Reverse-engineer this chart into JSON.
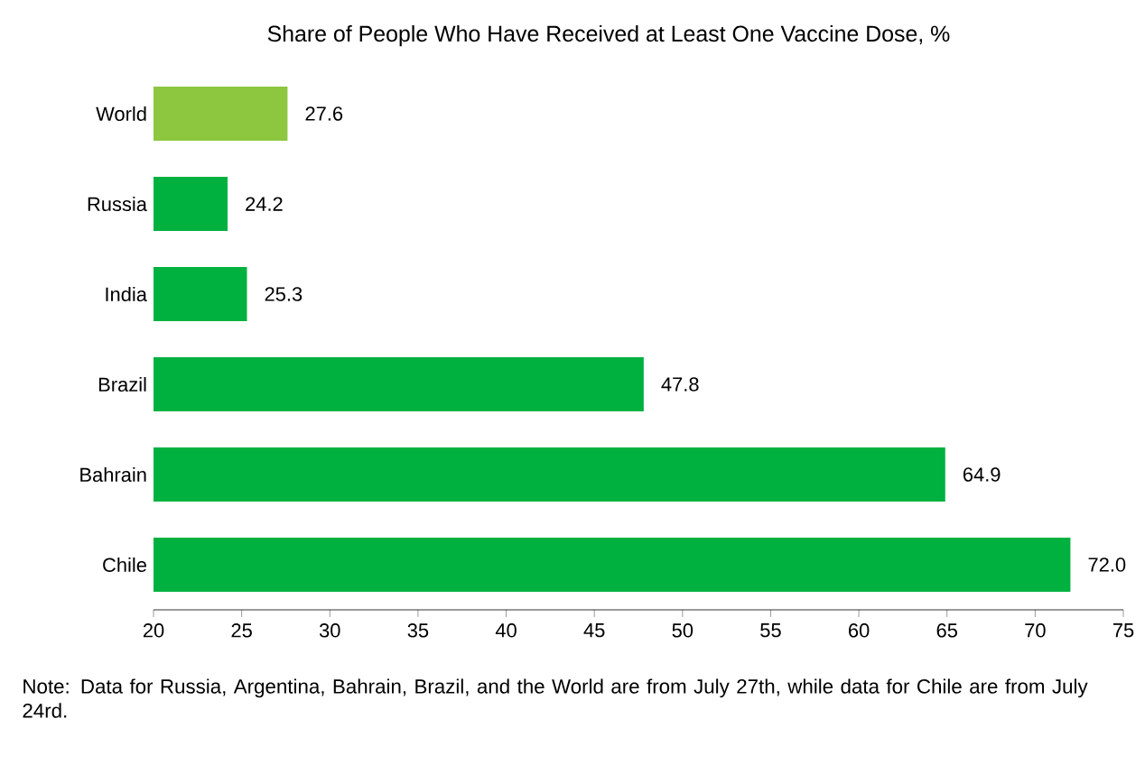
{
  "chart_data": {
    "type": "bar",
    "orientation": "horizontal",
    "title": "Share of People Who Have Received at Least One Vaccine Dose, %",
    "categories": [
      "World",
      "Russia",
      "India",
      "Brazil",
      "Bahrain",
      "Chile"
    ],
    "values": [
      27.6,
      24.2,
      25.3,
      47.8,
      64.9,
      72.0
    ],
    "colors": [
      "#8dc63f",
      "#00b140",
      "#00b140",
      "#00b140",
      "#00b140",
      "#00b140"
    ],
    "xlim": [
      20,
      75
    ],
    "xticks": [
      20,
      25,
      30,
      35,
      40,
      45,
      50,
      55,
      60,
      65,
      70,
      75
    ],
    "value_labels": [
      "27.6",
      "24.2",
      "25.3",
      "47.8",
      "64.9",
      "72.0"
    ],
    "grid": false,
    "annotations": [
      "Note: Data for Russia, Argentina, Bahrain, Brazil, and the World are from July 27th, while data for Chile are from July 24rd."
    ]
  }
}
